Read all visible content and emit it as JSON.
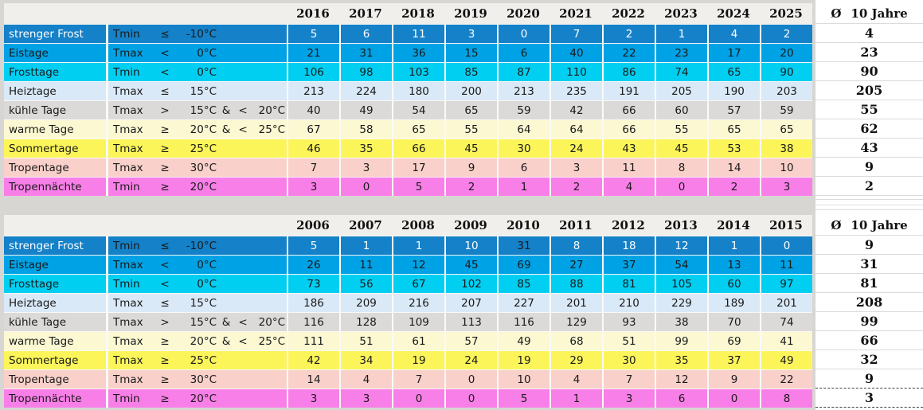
{
  "colors": {
    "page_background": "#D8D6D2",
    "header_band": "#F1EFEC",
    "cell_separator": "#FBFAF7",
    "avg_column_background": "#FFFFFF",
    "avg_gridline": "#DCDCDC",
    "marquee_dash": "#3F3F3F",
    "default_text": "#1A1A1A"
  },
  "avg_header": {
    "symbol": "Ø",
    "label": "10 Jahre"
  },
  "row_defs": [
    {
      "label": "strenger Frost",
      "bg": "#1581C8",
      "fg": "#FFFFFF",
      "cond": {
        "var": "Tmin",
        "op": "≤",
        "val": "-10°C",
        "amp": "",
        "op2": "",
        "val2": ""
      }
    },
    {
      "label": "Eistage",
      "bg": "#00A2E6",
      "fg": "#1A1A1A",
      "cond": {
        "var": "Tmax",
        "op": "<",
        "val": "0°C",
        "amp": "",
        "op2": "",
        "val2": ""
      }
    },
    {
      "label": "Frosttage",
      "bg": "#00CFF2",
      "fg": "#1A1A1A",
      "cond": {
        "var": "Tmin",
        "op": "<",
        "val": "0°C",
        "amp": "",
        "op2": "",
        "val2": ""
      }
    },
    {
      "label": "Heiztage",
      "bg": "#DAE9F7",
      "fg": "#1A1A1A",
      "cond": {
        "var": "Tmax",
        "op": "≤",
        "val": "15°C",
        "amp": "",
        "op2": "",
        "val2": ""
      }
    },
    {
      "label": "kühle Tage",
      "bg": "#DBDAD8",
      "fg": "#1A1A1A",
      "cond": {
        "var": "Tmax",
        "op": ">",
        "val": "15°C",
        "amp": "&",
        "op2": "<",
        "val2": "20°C"
      }
    },
    {
      "label": "warme Tage",
      "bg": "#FBF8D2",
      "fg": "#1A1A1A",
      "cond": {
        "var": "Tmax",
        "op": "≥",
        "val": "20°C",
        "amp": "&",
        "op2": "<",
        "val2": "25°C"
      }
    },
    {
      "label": "Sommertage",
      "bg": "#FBF55A",
      "fg": "#1A1A1A",
      "cond": {
        "var": "Tmax",
        "op": "≥",
        "val": "25°C",
        "amp": "",
        "op2": "",
        "val2": ""
      }
    },
    {
      "label": "Tropentage",
      "bg": "#F9D0CA",
      "fg": "#1A1A1A",
      "cond": {
        "var": "Tmax",
        "op": "≥",
        "val": "30°C",
        "amp": "",
        "op2": "",
        "val2": ""
      }
    },
    {
      "label": "Tropennächte",
      "bg": "#F97FE8",
      "fg": "#1A1A1A",
      "cond": {
        "var": "Tmin",
        "op": "≥",
        "val": "20°C",
        "amp": "",
        "op2": "",
        "val2": ""
      }
    }
  ],
  "tables": [
    {
      "name": "2016-2025",
      "years": [
        "2016",
        "2017",
        "2018",
        "2019",
        "2020",
        "2021",
        "2022",
        "2023",
        "2024",
        "2025"
      ],
      "rows": [
        {
          "values": [
            5,
            6,
            11,
            3,
            0,
            7,
            2,
            1,
            4,
            2
          ],
          "avg": "4"
        },
        {
          "values": [
            21,
            31,
            36,
            15,
            6,
            40,
            22,
            23,
            17,
            20
          ],
          "avg": "23"
        },
        {
          "values": [
            106,
            98,
            103,
            85,
            87,
            110,
            86,
            74,
            65,
            90
          ],
          "avg": "90"
        },
        {
          "values": [
            213,
            224,
            180,
            200,
            213,
            235,
            191,
            205,
            190,
            203
          ],
          "avg": "205"
        },
        {
          "values": [
            40,
            49,
            54,
            65,
            59,
            42,
            66,
            60,
            57,
            59
          ],
          "avg": "55"
        },
        {
          "values": [
            67,
            58,
            65,
            55,
            64,
            64,
            66,
            55,
            65,
            65
          ],
          "avg": "62"
        },
        {
          "values": [
            46,
            35,
            66,
            45,
            30,
            24,
            43,
            45,
            53,
            38
          ],
          "avg": "43"
        },
        {
          "values": [
            7,
            3,
            17,
            9,
            6,
            3,
            11,
            8,
            14,
            10
          ],
          "avg": "9"
        },
        {
          "values": [
            3,
            0,
            5,
            2,
            1,
            2,
            4,
            0,
            2,
            3
          ],
          "avg": "2"
        }
      ],
      "dark_value_cells": [],
      "dashed_avg_rows": []
    },
    {
      "name": "2006-2015",
      "years": [
        "2006",
        "2007",
        "2008",
        "2009",
        "2010",
        "2011",
        "2012",
        "2013",
        "2014",
        "2015"
      ],
      "rows": [
        {
          "values": [
            5,
            1,
            1,
            10,
            31,
            8,
            18,
            12,
            1,
            0
          ],
          "avg": "9"
        },
        {
          "values": [
            26,
            11,
            12,
            45,
            69,
            27,
            37,
            54,
            13,
            11
          ],
          "avg": "31"
        },
        {
          "values": [
            73,
            56,
            67,
            102,
            85,
            88,
            81,
            105,
            60,
            97
          ],
          "avg": "81"
        },
        {
          "values": [
            186,
            209,
            216,
            207,
            227,
            201,
            210,
            229,
            189,
            201
          ],
          "avg": "208"
        },
        {
          "values": [
            116,
            128,
            109,
            113,
            116,
            129,
            93,
            38,
            70,
            74
          ],
          "avg": "99"
        },
        {
          "values": [
            111,
            51,
            61,
            57,
            49,
            68,
            51,
            99,
            69,
            41
          ],
          "avg": "66"
        },
        {
          "values": [
            42,
            34,
            19,
            24,
            19,
            29,
            30,
            35,
            37,
            49
          ],
          "avg": "32"
        },
        {
          "values": [
            14,
            4,
            7,
            0,
            10,
            4,
            7,
            12,
            9,
            22
          ],
          "avg": "9"
        },
        {
          "values": [
            3,
            3,
            0,
            0,
            5,
            1,
            3,
            6,
            0,
            8
          ],
          "avg": "3"
        }
      ],
      "dark_value_cells": [
        {
          "row": 0,
          "col": 4
        }
      ],
      "dashed_avg_rows": [
        7,
        8
      ]
    }
  ]
}
